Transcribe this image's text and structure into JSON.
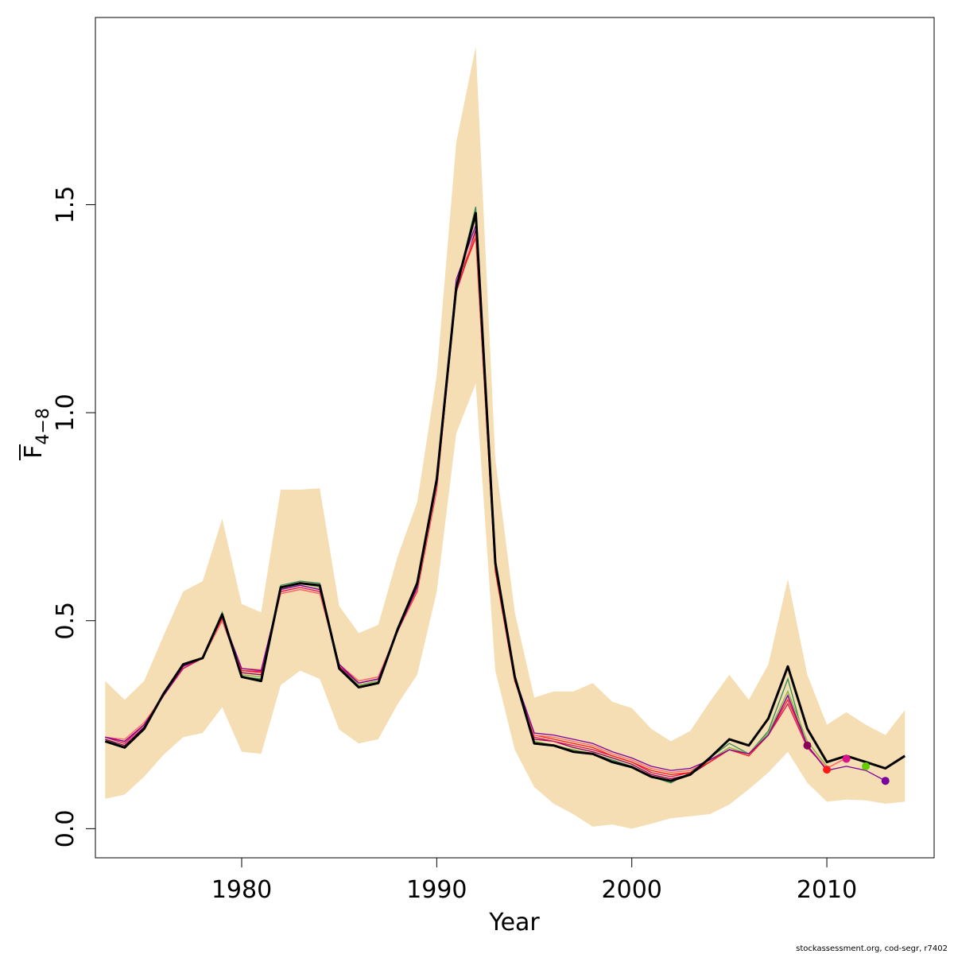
{
  "chart_data": {
    "type": "line",
    "xlabel": "Year",
    "ylabel": {
      "base": "F",
      "subscript": "4−8"
    },
    "xlim": [
      1972.5,
      2015.5
    ],
    "ylim": [
      -0.07,
      1.95
    ],
    "x_ticks": [
      1980,
      1990,
      2000,
      2010
    ],
    "y_ticks": [
      0.0,
      0.5,
      1.0,
      1.5
    ],
    "y_tick_labels": [
      "0.0",
      "0.5",
      "1.0",
      "1.5"
    ],
    "grid": false,
    "colors": {
      "band": "#F5DEB3",
      "main": "#000000",
      "retro": [
        "#2E8B57",
        "#7CB342",
        "#8B0057",
        "#E0115F",
        "#FF1A1A",
        "#FF6A6A",
        "#7B00A0"
      ]
    },
    "confidence_band": {
      "x": [
        1973,
        1974,
        1975,
        1976,
        1977,
        1978,
        1979,
        1980,
        1981,
        1982,
        1983,
        1984,
        1985,
        1986,
        1987,
        1988,
        1989,
        1990,
        1991,
        1992,
        1993,
        1994,
        1995,
        1996,
        1997,
        1998,
        1999,
        2000,
        2001,
        2002,
        2003,
        2004,
        2005,
        2006,
        2007,
        2008,
        2009,
        2010,
        2011,
        2012,
        2013,
        2014
      ],
      "upper": [
        0.355,
        0.31,
        0.355,
        0.465,
        0.57,
        0.595,
        0.745,
        0.54,
        0.52,
        0.815,
        0.815,
        0.818,
        0.535,
        0.47,
        0.49,
        0.655,
        0.785,
        1.09,
        1.65,
        1.88,
        0.89,
        0.52,
        0.315,
        0.33,
        0.33,
        0.35,
        0.305,
        0.29,
        0.24,
        0.21,
        0.235,
        0.305,
        0.37,
        0.31,
        0.395,
        0.6,
        0.37,
        0.25,
        0.28,
        0.25,
        0.225,
        0.285
      ],
      "lower": [
        0.072,
        0.082,
        0.125,
        0.178,
        0.22,
        0.23,
        0.292,
        0.185,
        0.18,
        0.345,
        0.38,
        0.36,
        0.238,
        0.205,
        0.215,
        0.3,
        0.37,
        0.57,
        0.95,
        1.07,
        0.38,
        0.19,
        0.1,
        0.06,
        0.035,
        0.005,
        0.01,
        0.0,
        0.012,
        0.025,
        0.03,
        0.035,
        0.058,
        0.095,
        0.135,
        0.185,
        0.11,
        0.065,
        0.07,
        0.068,
        0.06,
        0.065
      ]
    },
    "series": [
      {
        "x": [
          1973,
          1974,
          1975,
          1976,
          1977,
          1978,
          1979,
          1980,
          1981,
          1982,
          1983,
          1984,
          1985,
          1986,
          1987,
          1988,
          1989,
          1990,
          1991,
          1992,
          1993,
          1994,
          1995,
          1996,
          1997,
          1998,
          1999,
          2000,
          2001,
          2002,
          2003,
          2004,
          2005,
          2006,
          2007,
          2008,
          2009
        ],
        "y": [
          0.215,
          0.195,
          0.24,
          0.325,
          0.395,
          0.41,
          0.52,
          0.365,
          0.36,
          0.585,
          0.595,
          0.59,
          0.39,
          0.345,
          0.355,
          0.48,
          0.595,
          0.845,
          1.3,
          1.495,
          0.64,
          0.37,
          0.21,
          0.2,
          0.19,
          0.18,
          0.165,
          0.15,
          0.125,
          0.11,
          0.135,
          0.17,
          0.205,
          0.18,
          0.235,
          0.36,
          0.19
        ]
      },
      {
        "x": [
          1973,
          1974,
          1975,
          1976,
          1977,
          1978,
          1979,
          1980,
          1981,
          1982,
          1983,
          1984,
          1985,
          1986,
          1987,
          1988,
          1989,
          1990,
          1991,
          1992,
          1993,
          1994,
          1995,
          1996,
          1997,
          1998,
          1999,
          2000,
          2001,
          2002,
          2003,
          2004,
          2005,
          2006,
          2007,
          2008,
          2009,
          2010
        ],
        "y": [
          0.215,
          0.2,
          0.24,
          0.325,
          0.39,
          0.41,
          0.51,
          0.37,
          0.365,
          0.58,
          0.59,
          0.58,
          0.385,
          0.345,
          0.355,
          0.48,
          0.59,
          0.835,
          1.3,
          1.47,
          0.635,
          0.365,
          0.21,
          0.2,
          0.19,
          0.18,
          0.16,
          0.15,
          0.125,
          0.115,
          0.13,
          0.165,
          0.195,
          0.18,
          0.23,
          0.33,
          0.21,
          0.15
        ]
      },
      {
        "x": [
          1973,
          1974,
          1975,
          1976,
          1977,
          1978,
          1979,
          1980,
          1981,
          1982,
          1983,
          1984,
          1985,
          1986,
          1987,
          1988,
          1989,
          1990,
          1991,
          1992,
          1993,
          1994,
          1995,
          1996,
          1997,
          1998,
          1999,
          2000,
          2001,
          2002,
          2003,
          2004,
          2005,
          2006,
          2007,
          2008,
          2009
        ],
        "y": [
          0.215,
          0.2,
          0.245,
          0.32,
          0.385,
          0.41,
          0.5,
          0.375,
          0.37,
          0.575,
          0.585,
          0.575,
          0.39,
          0.35,
          0.36,
          0.48,
          0.58,
          0.825,
          1.29,
          1.44,
          0.625,
          0.36,
          0.215,
          0.21,
          0.195,
          0.185,
          0.17,
          0.155,
          0.13,
          0.12,
          0.13,
          0.16,
          0.19,
          0.18,
          0.225,
          0.32,
          0.2
        ]
      },
      {
        "x": [
          1973,
          1974,
          1975,
          1976,
          1977,
          1978,
          1979,
          1980,
          1981,
          1982,
          1983,
          1984,
          1985,
          1986,
          1987,
          1988,
          1989,
          1990,
          1991,
          1992,
          1993,
          1994,
          1995,
          1996,
          1997,
          1998,
          1999,
          2000,
          2001,
          2002,
          2003,
          2004,
          2005,
          2006,
          2007,
          2008,
          2009,
          2010,
          2011
        ],
        "y": [
          0.22,
          0.205,
          0.25,
          0.32,
          0.385,
          0.41,
          0.5,
          0.38,
          0.375,
          0.57,
          0.58,
          0.57,
          0.39,
          0.35,
          0.36,
          0.475,
          0.575,
          0.82,
          1.29,
          1.43,
          0.62,
          0.355,
          0.22,
          0.21,
          0.2,
          0.19,
          0.175,
          0.16,
          0.135,
          0.125,
          0.135,
          0.16,
          0.19,
          0.175,
          0.225,
          0.3,
          0.195,
          0.145,
          0.17
        ]
      },
      {
        "x": [
          1973,
          1974,
          1975,
          1976,
          1977,
          1978,
          1979,
          1980,
          1981,
          1982,
          1983,
          1984,
          1985,
          1986,
          1987,
          1988,
          1989,
          1990,
          1991,
          1992,
          1993,
          1994,
          1995,
          1996,
          1997,
          1998,
          1999,
          2000,
          2001,
          2002,
          2003,
          2004,
          2005,
          2006,
          2007,
          2008,
          2009,
          2010
        ],
        "y": [
          0.22,
          0.21,
          0.25,
          0.325,
          0.39,
          0.41,
          0.505,
          0.38,
          0.378,
          0.565,
          0.575,
          0.565,
          0.395,
          0.355,
          0.365,
          0.475,
          0.57,
          0.815,
          1.3,
          1.42,
          0.62,
          0.355,
          0.225,
          0.215,
          0.205,
          0.195,
          0.175,
          0.16,
          0.14,
          0.13,
          0.135,
          0.16,
          0.19,
          0.175,
          0.225,
          0.31,
          0.2,
          0.145
        ]
      },
      {
        "x": [
          1973,
          1974,
          1975,
          1976,
          1977,
          1978,
          1979,
          1980,
          1981,
          1982,
          1983,
          1984,
          1985,
          1986,
          1987,
          1988,
          1989,
          1990,
          1991,
          1992,
          1993,
          1994,
          1995,
          1996,
          1997,
          1998,
          1999,
          2000,
          2001,
          2002,
          2003,
          2004,
          2005,
          2006,
          2007,
          2008,
          2009,
          2010,
          2011
        ],
        "y": [
          0.22,
          0.215,
          0.255,
          0.32,
          0.39,
          0.41,
          0.5,
          0.385,
          0.382,
          0.565,
          0.575,
          0.565,
          0.395,
          0.355,
          0.365,
          0.475,
          0.575,
          0.82,
          1.31,
          1.43,
          0.63,
          0.36,
          0.225,
          0.22,
          0.21,
          0.2,
          0.18,
          0.165,
          0.145,
          0.135,
          0.14,
          0.165,
          0.19,
          0.18,
          0.225,
          0.32,
          0.2,
          0.145,
          0.17
        ]
      },
      {
        "x": [
          1973,
          1974,
          1975,
          1976,
          1977,
          1978,
          1979,
          1980,
          1981,
          1982,
          1983,
          1984,
          1985,
          1986,
          1987,
          1988,
          1989,
          1990,
          1991,
          1992,
          1993,
          1994,
          1995,
          1996,
          1997,
          1998,
          1999,
          2000,
          2001,
          2002,
          2003,
          2004,
          2005,
          2006,
          2007,
          2008,
          2009,
          2010,
          2011,
          2012,
          2013
        ],
        "y": [
          0.22,
          0.21,
          0.25,
          0.32,
          0.39,
          0.41,
          0.51,
          0.385,
          0.38,
          0.575,
          0.585,
          0.575,
          0.395,
          0.35,
          0.36,
          0.475,
          0.58,
          0.83,
          1.32,
          1.45,
          0.635,
          0.365,
          0.23,
          0.225,
          0.215,
          0.205,
          0.185,
          0.17,
          0.15,
          0.14,
          0.145,
          0.165,
          0.19,
          0.18,
          0.225,
          0.32,
          0.2,
          0.14,
          0.15,
          0.14,
          0.115
        ]
      }
    ],
    "main_series": {
      "x": [
        1973,
        1974,
        1975,
        1976,
        1977,
        1978,
        1979,
        1980,
        1981,
        1982,
        1983,
        1984,
        1985,
        1986,
        1987,
        1988,
        1989,
        1990,
        1991,
        1992,
        1993,
        1994,
        1995,
        1996,
        1997,
        1998,
        1999,
        2000,
        2001,
        2002,
        2003,
        2004,
        2005,
        2006,
        2007,
        2008,
        2009,
        2010,
        2011,
        2012,
        2013,
        2014
      ],
      "y": [
        0.21,
        0.195,
        0.24,
        0.325,
        0.395,
        0.41,
        0.515,
        0.365,
        0.355,
        0.58,
        0.59,
        0.585,
        0.385,
        0.34,
        0.35,
        0.48,
        0.59,
        0.84,
        1.3,
        1.48,
        0.64,
        0.365,
        0.205,
        0.2,
        0.185,
        0.18,
        0.16,
        0.148,
        0.125,
        0.115,
        0.13,
        0.17,
        0.215,
        0.2,
        0.265,
        0.39,
        0.24,
        0.16,
        0.175,
        0.16,
        0.145,
        0.175
      ]
    },
    "end_points": [
      {
        "x": 2009,
        "y": 0.2,
        "color": "#8B0057"
      },
      {
        "x": 2010,
        "y": 0.142,
        "color": "#FF1A1A"
      },
      {
        "x": 2011,
        "y": 0.168,
        "color": "#E0118F"
      },
      {
        "x": 2012,
        "y": 0.15,
        "color": "#66CC00"
      },
      {
        "x": 2013,
        "y": 0.115,
        "color": "#7B00A0"
      }
    ]
  },
  "footer": "stockassessment.org, cod-segr, r7402"
}
